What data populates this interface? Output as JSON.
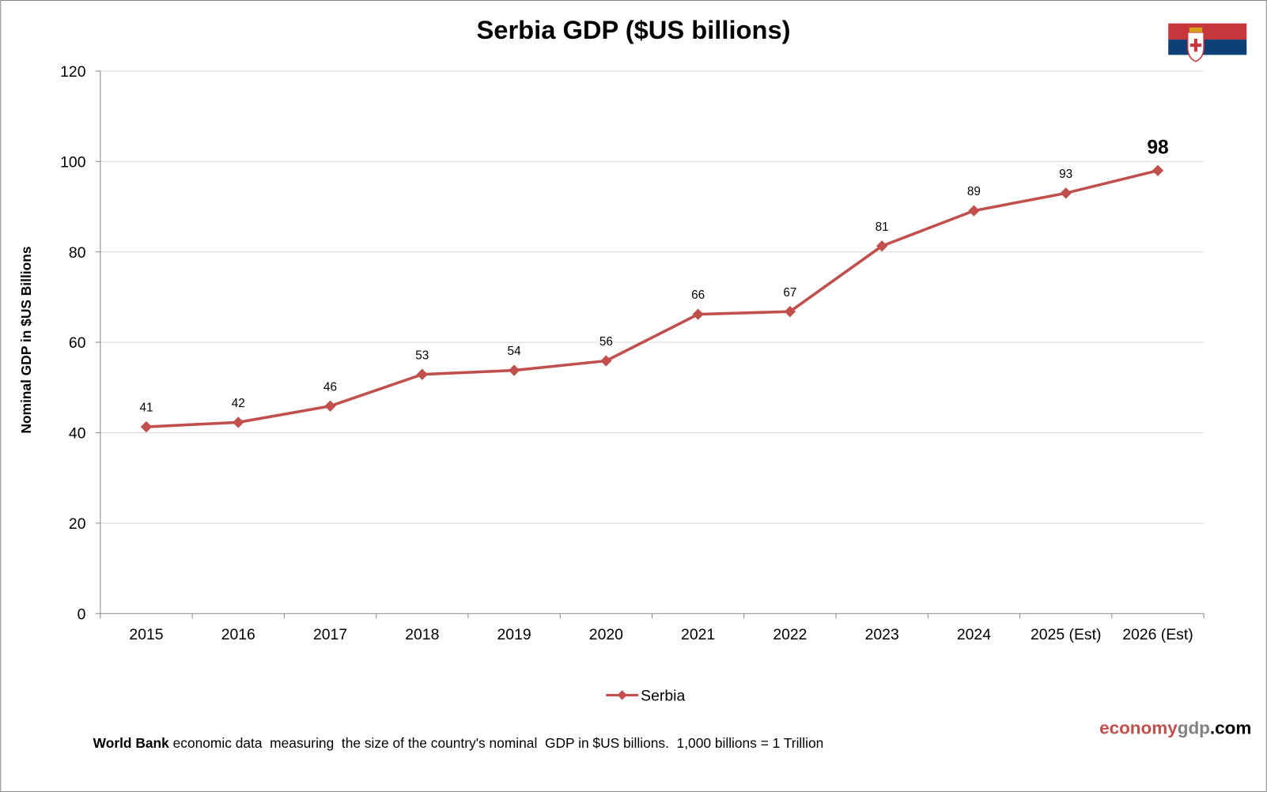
{
  "chart_data": {
    "type": "line",
    "title": "Serbia GDP ($US billions)",
    "ylabel": "Nominal GDP in $US Billions",
    "xlabel": "",
    "categories": [
      "2015",
      "2016",
      "2017",
      "2018",
      "2019",
      "2020",
      "2021",
      "2022",
      "2023",
      "2024",
      "2025 (Est)",
      "2026 (Est)"
    ],
    "series": [
      {
        "name": "Serbia",
        "color": "#c0504d",
        "values": [
          41.3,
          42.3,
          45.9,
          52.9,
          53.8,
          55.9,
          66.2,
          66.8,
          81.3,
          89.1,
          93.0,
          98.0
        ],
        "labels": [
          "41",
          "42",
          "46",
          "53",
          "54",
          "56",
          "66",
          "67",
          "81",
          "89",
          "93",
          "98"
        ]
      }
    ],
    "ylim": [
      0,
      120
    ],
    "yticks": [
      0,
      20,
      40,
      60,
      80,
      100,
      120
    ],
    "grid": true,
    "legend": "bottom-center"
  },
  "footer": {
    "source_bold": "World Bank",
    "source_text": " economic data  measuring  the size of the country's nominal  GDP in $US billions.  1,000 billions = 1 Trillion",
    "brand_part1": "economy",
    "brand_part2": "gdp",
    "brand_part3": ".com",
    "brand_colors": [
      "#c0504d",
      "#808080",
      "#000000"
    ]
  },
  "flag": {
    "icon": "serbia-flag",
    "colors": [
      "#c6363c",
      "#0c4076",
      "#ffffff"
    ]
  }
}
